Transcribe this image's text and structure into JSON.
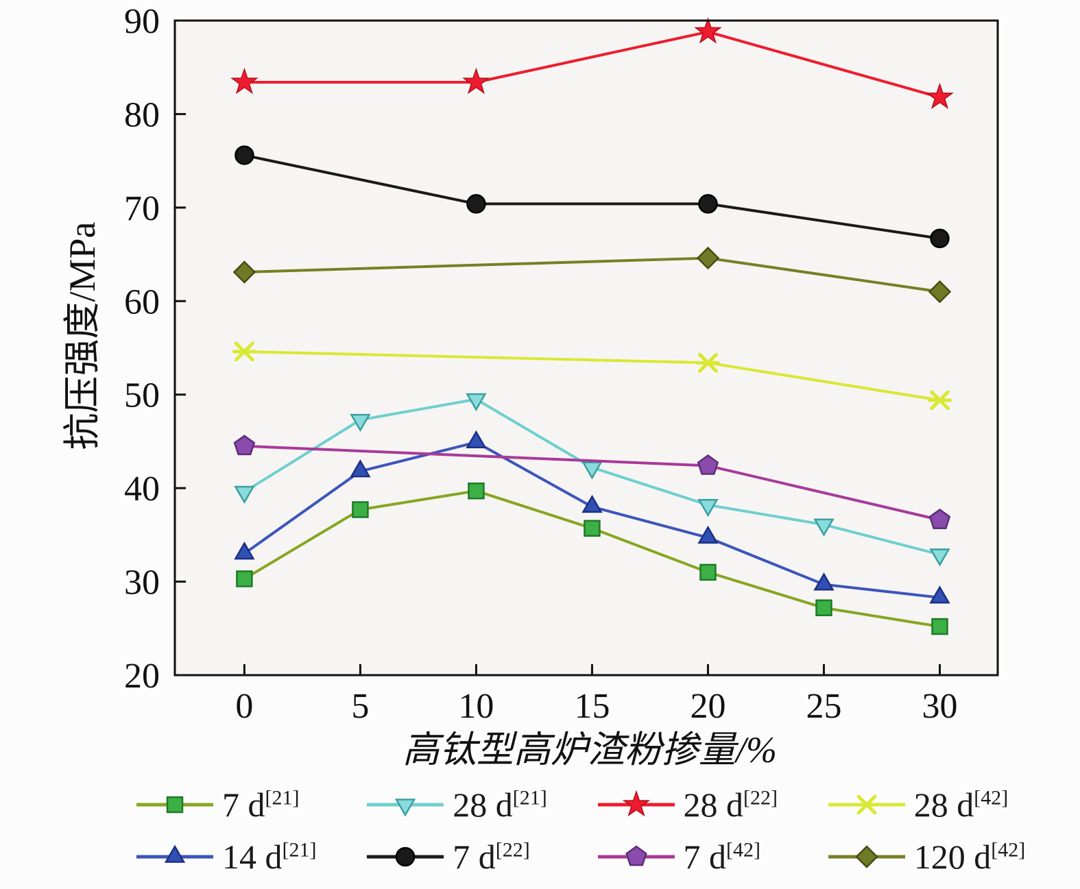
{
  "chart_data": {
    "type": "line",
    "title": "",
    "xlabel": "高钛型高炉渣粉掺量/%",
    "ylabel": "抗压强度/MPa",
    "xlim": [
      -3,
      32.5
    ],
    "ylim": [
      20,
      90
    ],
    "xticks": [
      0,
      5,
      10,
      15,
      20,
      25,
      30
    ],
    "yticks": [
      20,
      30,
      40,
      50,
      60,
      70,
      80,
      90
    ],
    "axis_color": "#111111",
    "plot_bg": "#f6f5f3",
    "grid": false,
    "legend_position": "bottom",
    "series": [
      {
        "id": "7d-21",
        "name": "7 d",
        "ref": "[21]",
        "marker": "square",
        "line_color": "#86a622",
        "marker_fill": "#3cb044",
        "marker_edge": "#1e7a28",
        "x": [
          0,
          5,
          10,
          15,
          20,
          25,
          30
        ],
        "y": [
          30.3,
          37.7,
          39.7,
          35.7,
          31.0,
          27.2,
          25.2
        ]
      },
      {
        "id": "28d-21",
        "name": "28 d",
        "ref": "[21]",
        "marker": "triangle-down",
        "line_color": "#6fcfcf",
        "marker_fill": "#8adcdc",
        "marker_edge": "#3a9f9f",
        "x": [
          0,
          5,
          10,
          15,
          20,
          25,
          30
        ],
        "y": [
          39.6,
          47.3,
          49.5,
          42.2,
          38.2,
          36.1,
          32.9
        ]
      },
      {
        "id": "28d-22",
        "name": "28 d",
        "ref": "[22]",
        "marker": "star",
        "line_color": "#ee1c2e",
        "marker_fill": "#ee1c2e",
        "marker_edge": "#b40e1e",
        "x": [
          0,
          10,
          20,
          30
        ],
        "y": [
          83.4,
          83.4,
          88.8,
          81.8
        ]
      },
      {
        "id": "28d-42",
        "name": "28 d",
        "ref": "[42]",
        "marker": "x",
        "line_color": "#d9e832",
        "marker_fill": "#d9e832",
        "marker_edge": "#c6d41e",
        "x": [
          0,
          20,
          30
        ],
        "y": [
          54.6,
          53.4,
          49.4
        ]
      },
      {
        "id": "14d-21",
        "name": "14 d",
        "ref": "[21]",
        "marker": "triangle-up",
        "line_color": "#3d55bb",
        "marker_fill": "#3050b4",
        "marker_edge": "#1c2f86",
        "x": [
          0,
          5,
          10,
          15,
          20,
          25,
          30
        ],
        "y": [
          33.0,
          41.8,
          44.9,
          38.0,
          34.7,
          29.7,
          28.3
        ]
      },
      {
        "id": "7d-22",
        "name": "7 d",
        "ref": "[22]",
        "marker": "circle",
        "line_color": "#1a1a1a",
        "marker_fill": "#1a1a1a",
        "marker_edge": "#000000",
        "x": [
          0,
          10,
          20,
          30
        ],
        "y": [
          75.6,
          70.4,
          70.4,
          66.7
        ]
      },
      {
        "id": "7d-42",
        "name": "7 d",
        "ref": "[42]",
        "marker": "pentagon",
        "line_color": "#a83a99",
        "marker_fill": "#8a4bad",
        "marker_edge": "#5c2d7a",
        "x": [
          0,
          20,
          30
        ],
        "y": [
          44.5,
          42.4,
          36.6
        ]
      },
      {
        "id": "120d-42",
        "name": "120 d",
        "ref": "[42]",
        "marker": "diamond",
        "line_color": "#778024",
        "marker_fill": "#6e7b26",
        "marker_edge": "#454d14",
        "x": [
          0,
          20,
          30
        ],
        "y": [
          63.1,
          64.6,
          61.0
        ]
      }
    ]
  }
}
